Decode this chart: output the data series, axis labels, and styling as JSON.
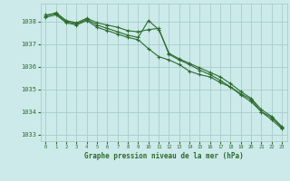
{
  "title": "Graphe pression niveau de la mer (hPa)",
  "background_color": "#cceaea",
  "grid_color": "#aacccc",
  "line_color": "#2d6b2d",
  "xlim": [
    -0.5,
    23.5
  ],
  "ylim": [
    1032.7,
    1038.8
  ],
  "yticks": [
    1033,
    1034,
    1035,
    1036,
    1037,
    1038
  ],
  "xticks": [
    0,
    1,
    2,
    3,
    4,
    5,
    6,
    7,
    8,
    9,
    10,
    11,
    12,
    13,
    14,
    15,
    16,
    17,
    18,
    19,
    20,
    21,
    22,
    23
  ],
  "series": [
    [
      1038.25,
      1038.4,
      1038.05,
      1037.95,
      1038.15,
      1037.95,
      1037.85,
      1037.75,
      1037.6,
      1037.55,
      1037.65,
      1037.7,
      1036.55,
      1036.3,
      1036.1,
      1035.85,
      1035.65,
      1035.4,
      1035.1,
      1034.8,
      1034.55,
      1034.0,
      1033.75,
      1033.3
    ],
    [
      1038.3,
      1038.35,
      1038.0,
      1037.9,
      1038.1,
      1037.85,
      1037.7,
      1037.55,
      1037.4,
      1037.3,
      1038.05,
      1037.65,
      1036.6,
      1036.35,
      1036.15,
      1035.95,
      1035.75,
      1035.55,
      1035.25,
      1034.9,
      1034.6,
      1034.1,
      1033.8,
      1033.35
    ],
    [
      1038.2,
      1038.3,
      1037.95,
      1037.85,
      1038.05,
      1037.75,
      1037.6,
      1037.45,
      1037.3,
      1037.2,
      1036.8,
      1036.45,
      1036.3,
      1036.1,
      1035.8,
      1035.65,
      1035.55,
      1035.3,
      1035.1,
      1034.75,
      1034.45,
      1034.0,
      1033.65,
      1033.25
    ]
  ]
}
